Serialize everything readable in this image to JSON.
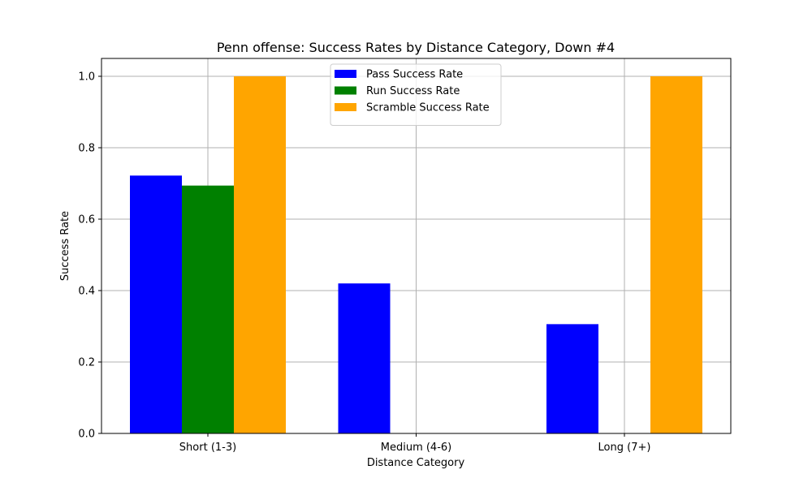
{
  "chart_data": {
    "type": "bar",
    "title": "Penn offense: Success Rates by Distance Category, Down #4",
    "xlabel": "Distance Category",
    "ylabel": "Success Rate",
    "categories": [
      "Short (1-3)",
      "Medium (4-6)",
      "Long (7+)"
    ],
    "ylim": [
      0,
      1.05
    ],
    "yticks": [
      "0.0",
      "0.2",
      "0.4",
      "0.6",
      "0.8",
      "1.0"
    ],
    "grid": true,
    "legend_position": "top-center",
    "series": [
      {
        "name": "Pass Success Rate",
        "color": "#0000ff",
        "values": [
          0.722,
          0.42,
          0.306
        ]
      },
      {
        "name": "Run Success Rate",
        "color": "#008000",
        "values": [
          0.694,
          null,
          null
        ]
      },
      {
        "name": "Scramble Success Rate",
        "color": "#ffa500",
        "values": [
          1.0,
          null,
          1.0
        ]
      }
    ]
  }
}
